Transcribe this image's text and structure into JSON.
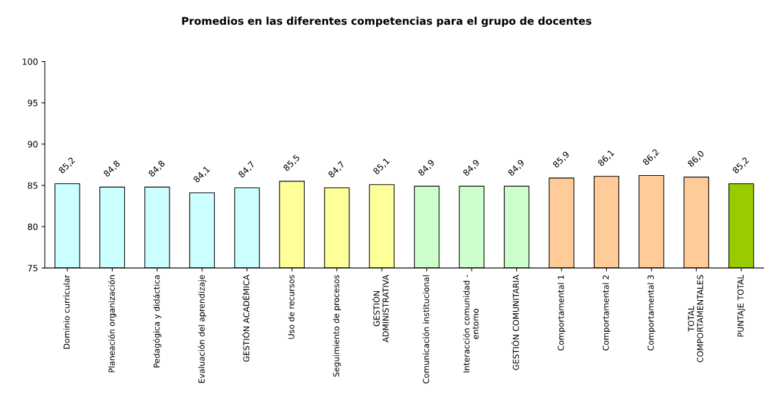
{
  "chart_data": {
    "type": "bar",
    "title": "Promedios en las diferentes competencias para el grupo de docentes",
    "categories": [
      "Dominio curricular",
      "Planeación organización",
      "Pedagógica y didáctica",
      "Evaluación del aprendizaje",
      "GESTIÓN ACADÉMICA",
      "Uso de recursos",
      "Seguimiento de procesos",
      "GESTIÓN\nADMINISTRATIVA",
      "Comunicación institucional",
      "Interacción comunidad -\nentomo",
      "GESTIÓN COMUNITARIA",
      "Comportamental 1",
      "Comportamental 2",
      "Comportamental 3",
      "TOTAL\nCOMPORTAMENTALES",
      "PUNTAJE TOTAL"
    ],
    "values": [
      85.2,
      84.8,
      84.8,
      84.1,
      84.7,
      85.5,
      84.7,
      85.1,
      84.9,
      84.9,
      84.9,
      85.9,
      86.1,
      86.2,
      86.0,
      85.2
    ],
    "value_labels": [
      "85,2",
      "84,8",
      "84,8",
      "84,1",
      "84,7",
      "85,5",
      "84,7",
      "85,1",
      "84,9",
      "84,9",
      "84,9",
      "85,9",
      "86,1",
      "86,2",
      "86,0",
      "85,2"
    ],
    "colors": [
      "#ccffff",
      "#ccffff",
      "#ccffff",
      "#ccffff",
      "#ccffff",
      "#ffff99",
      "#ffff99",
      "#ffff99",
      "#ccffcc",
      "#ccffcc",
      "#ccffcc",
      "#ffcc99",
      "#ffcc99",
      "#ffcc99",
      "#ffcc99",
      "#99cc00"
    ],
    "ylim": [
      75,
      100
    ],
    "yticks": [
      75,
      80,
      85,
      90,
      95,
      100
    ],
    "grid": false
  }
}
